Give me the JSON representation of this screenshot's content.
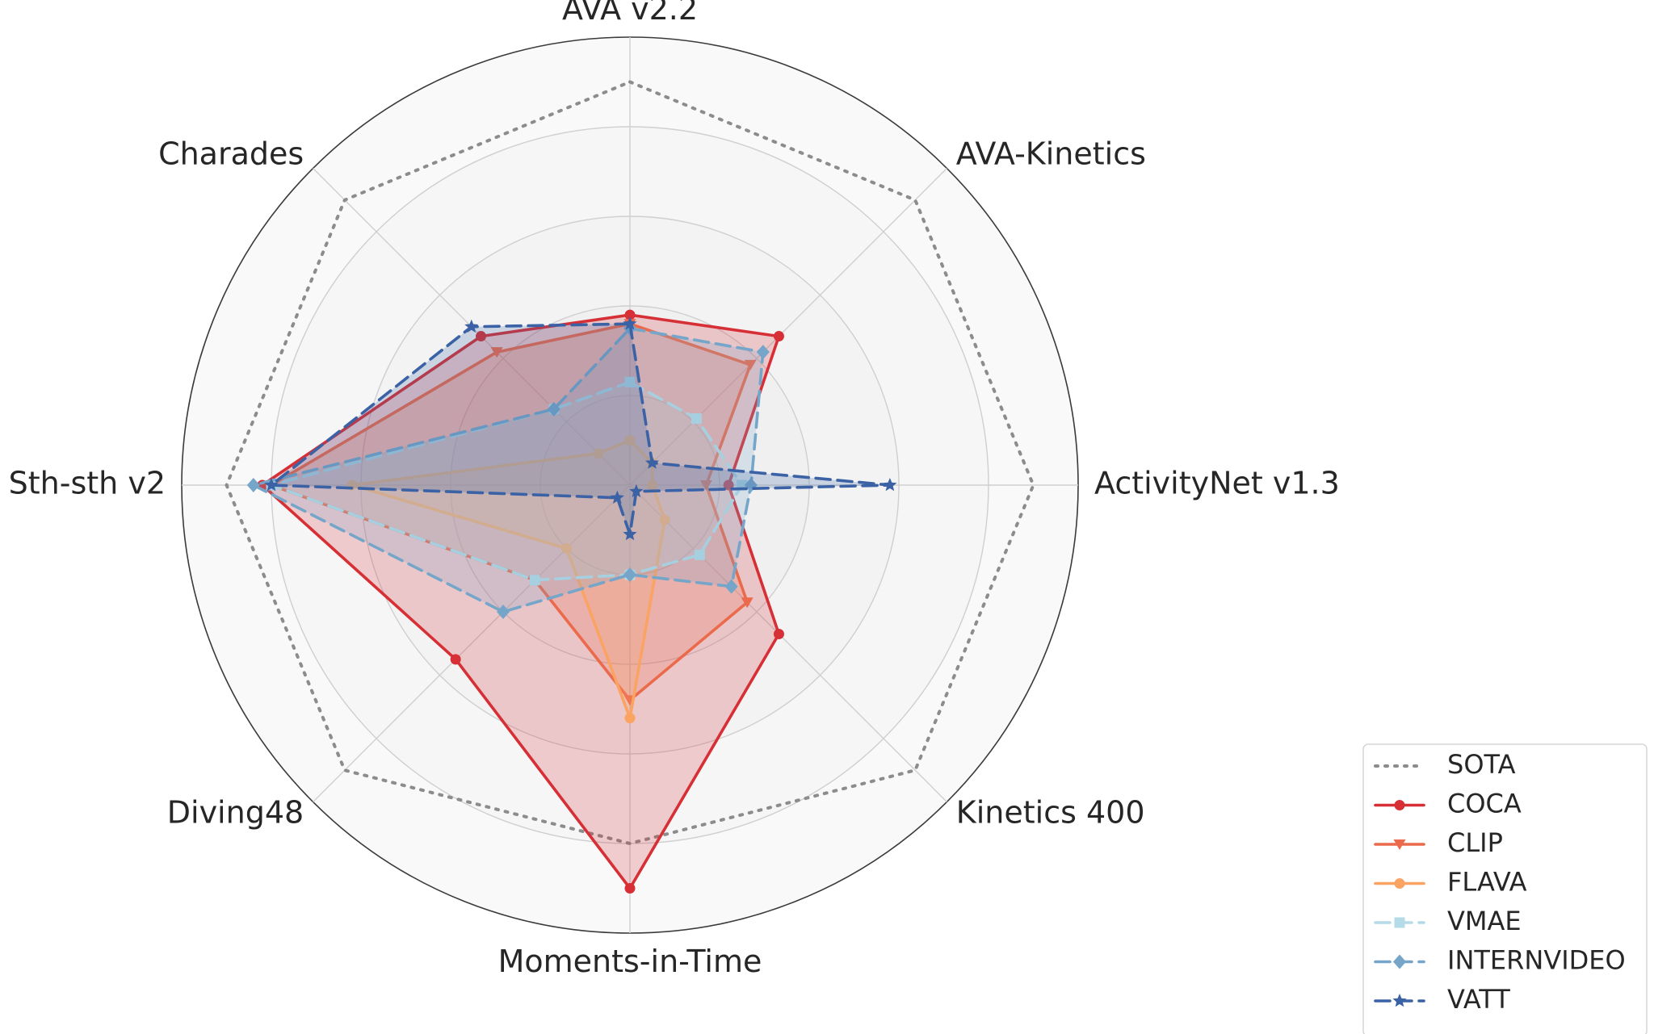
{
  "chart_data": {
    "type": "radar",
    "axes": [
      "AVA v2.2",
      "AVA-Kinetics",
      "ActivityNet v1.3",
      "Kinetics 400",
      "Moments-in-Time",
      "Diving48",
      "Sth-sth v2",
      "Charades"
    ],
    "rmax": 1.0,
    "grid_rings": [
      0.2,
      0.4,
      0.6,
      0.8,
      1.0
    ],
    "grid": true,
    "legend_position": "bottom-right",
    "series": [
      {
        "name": "SOTA",
        "values": [
          0.9,
          0.9,
          0.9,
          0.9,
          0.8,
          0.9,
          0.9,
          0.9
        ],
        "color": "#8c8c8c",
        "dash": "dotted",
        "marker": "none",
        "fill": false
      },
      {
        "name": "COCA",
        "values": [
          0.38,
          0.47,
          0.22,
          0.47,
          0.9,
          0.55,
          0.82,
          0.47
        ],
        "color": "#d62f35",
        "dash": "solid",
        "marker": "circle",
        "fill": true
      },
      {
        "name": "CLIP",
        "values": [
          0.36,
          0.38,
          0.17,
          0.37,
          0.48,
          0.3,
          0.8,
          0.42
        ],
        "color": "#ec6a4c",
        "dash": "solid",
        "marker": "triangle-down",
        "fill": true
      },
      {
        "name": "FLAVA",
        "values": [
          0.1,
          0.07,
          0.05,
          0.11,
          0.52,
          0.2,
          0.62,
          0.1
        ],
        "color": "#fba362",
        "dash": "solid",
        "marker": "circle",
        "fill": true
      },
      {
        "name": "VMAE",
        "values": [
          0.23,
          0.21,
          0.25,
          0.22,
          0.2,
          0.3,
          0.8,
          0.24
        ],
        "color": "#b4dbe7",
        "dash": "dashed",
        "marker": "square",
        "fill": true
      },
      {
        "name": "INTERNVIDEO",
        "values": [
          0.35,
          0.42,
          0.27,
          0.32,
          0.2,
          0.4,
          0.84,
          0.24
        ],
        "color": "#75a6c9",
        "dash": "dashed",
        "marker": "diamond",
        "fill": true
      },
      {
        "name": "VATT",
        "values": [
          0.36,
          0.07,
          0.58,
          0.02,
          0.11,
          0.04,
          0.8,
          0.5
        ],
        "color": "#3c62a6",
        "dash": "dashed",
        "marker": "star",
        "fill": true
      }
    ]
  }
}
